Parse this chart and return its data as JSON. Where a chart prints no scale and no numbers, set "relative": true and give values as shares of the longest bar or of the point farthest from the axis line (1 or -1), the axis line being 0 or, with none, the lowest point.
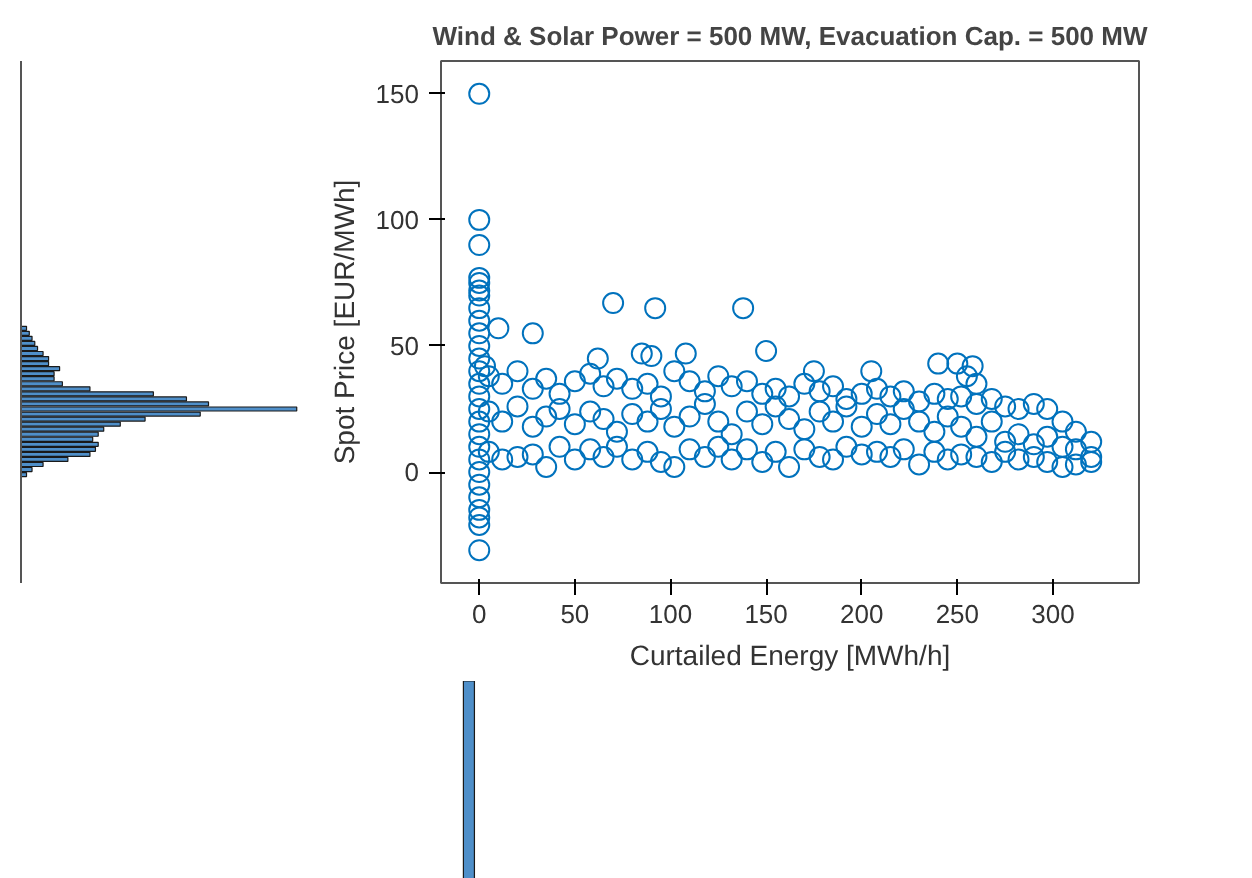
{
  "chart_data": [
    {
      "type": "bar",
      "orientation": "horizontal",
      "relative": true,
      "color": "#4f8fc9",
      "categories": [
        null,
        null,
        null,
        null,
        null,
        null,
        null,
        null,
        null,
        null,
        null,
        null,
        null,
        null,
        null,
        null,
        null,
        null,
        null,
        null,
        null,
        null,
        null,
        null,
        null,
        null,
        null,
        null,
        null,
        null
      ],
      "values": [
        0.02,
        0.03,
        0.04,
        0.05,
        0.06,
        0.08,
        0.1,
        0.1,
        0.14,
        0.12,
        0.12,
        0.15,
        0.25,
        0.48,
        0.6,
        0.68,
        1.0,
        0.65,
        0.45,
        0.36,
        0.3,
        0.28,
        0.26,
        0.28,
        0.27,
        0.25,
        0.17,
        0.08,
        0.04,
        0.02
      ]
    },
    {
      "type": "scatter",
      "title": "Wind & Solar Power = 500 MW, Evacuation Cap. = 500 MW",
      "xlabel": "Curtailed Energy [MWh/h]",
      "ylabel": "Spot Price [EUR/MWh]",
      "marker": "circle",
      "grid": false,
      "xlim": [
        -20,
        345
      ],
      "ylim": [
        -44,
        163
      ],
      "xticks": [
        0,
        50,
        100,
        150,
        200,
        250,
        300
      ],
      "yticks": [
        0,
        50,
        100,
        150
      ],
      "series": [
        {
          "color": "#0072bd",
          "x": [
            0,
            0,
            0,
            0,
            0,
            0,
            0,
            0,
            0,
            0,
            0,
            0,
            0,
            0,
            0,
            0,
            0,
            0,
            0,
            0,
            0,
            0,
            0,
            0,
            0,
            0,
            0,
            10,
            28,
            70,
            92,
            138,
            62,
            85,
            90,
            108,
            150,
            175,
            205,
            240,
            250,
            258,
            255,
            260,
            3,
            5,
            5,
            5,
            12,
            12,
            12,
            20,
            20,
            20,
            28,
            28,
            28,
            35,
            35,
            35,
            42,
            42,
            42,
            50,
            50,
            50,
            58,
            58,
            58,
            65,
            65,
            65,
            72,
            72,
            72,
            80,
            80,
            80,
            88,
            88,
            88,
            95,
            95,
            95,
            102,
            102,
            102,
            110,
            110,
            110,
            118,
            118,
            118,
            125,
            125,
            125,
            132,
            132,
            132,
            140,
            140,
            140,
            148,
            148,
            148,
            155,
            155,
            155,
            162,
            162,
            162,
            170,
            170,
            170,
            178,
            178,
            178,
            185,
            185,
            185,
            192,
            192,
            192,
            200,
            200,
            200,
            208,
            208,
            208,
            215,
            215,
            215,
            222,
            222,
            222,
            230,
            230,
            230,
            238,
            238,
            238,
            245,
            245,
            245,
            252,
            252,
            252,
            260,
            260,
            260,
            268,
            268,
            268,
            275,
            275,
            275,
            282,
            282,
            282,
            290,
            290,
            290,
            297,
            297,
            297,
            305,
            305,
            305,
            312,
            312,
            312,
            320,
            320,
            320
          ],
          "values": [
            150,
            100,
            90,
            77,
            75,
            72,
            70,
            65,
            60,
            55,
            50,
            45,
            40,
            35,
            30,
            25,
            20,
            15,
            10,
            5,
            0,
            -5,
            -10,
            -15,
            -18,
            -21,
            -31,
            57,
            55,
            67,
            65,
            65,
            45,
            47,
            46,
            47,
            48,
            40,
            40,
            43,
            43,
            42,
            38,
            35,
            42,
            38,
            24,
            8,
            35,
            20,
            5,
            40,
            26,
            6,
            33,
            18,
            7,
            37,
            22,
            2,
            31,
            25,
            10,
            36,
            19,
            5,
            39,
            24,
            9,
            34,
            21,
            6,
            37,
            16,
            10,
            33,
            23,
            5,
            35,
            20,
            8,
            30,
            25,
            4,
            40,
            18,
            2,
            36,
            22,
            9,
            32,
            27,
            6,
            38,
            20,
            10,
            34,
            15,
            5,
            36,
            24,
            9,
            31,
            19,
            4,
            33,
            26,
            8,
            30,
            21,
            2,
            35,
            17,
            9,
            32,
            24,
            6,
            34,
            20,
            5,
            29,
            26,
            10,
            31,
            18,
            7,
            33,
            23,
            8,
            30,
            19,
            6,
            32,
            25,
            9,
            28,
            20,
            3,
            31,
            16,
            8,
            29,
            22,
            5,
            30,
            18,
            7,
            27,
            14,
            6,
            29,
            20,
            4,
            26,
            12,
            8,
            25,
            15,
            5,
            27,
            11,
            6,
            25,
            14,
            4,
            20,
            10,
            2,
            16,
            9,
            3,
            12,
            6,
            4
          ]
        }
      ]
    },
    {
      "type": "bar",
      "relative": true,
      "color": "#4f8fc9",
      "categories": [
        null
      ],
      "values": [
        1
      ]
    }
  ]
}
